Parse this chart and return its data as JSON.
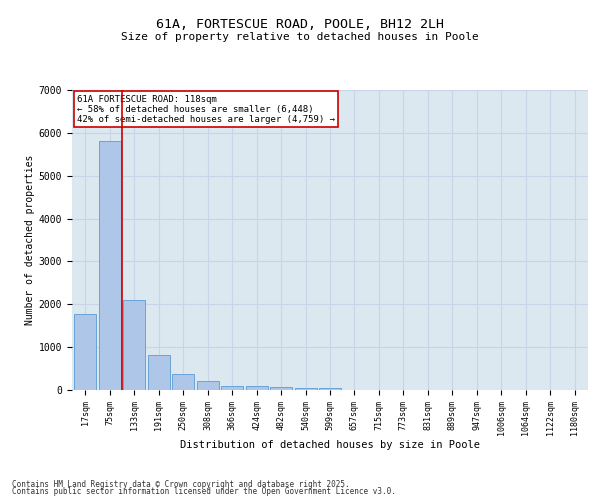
{
  "title_line1": "61A, FORTESCUE ROAD, POOLE, BH12 2LH",
  "title_line2": "Size of property relative to detached houses in Poole",
  "xlabel": "Distribution of detached houses by size in Poole",
  "ylabel": "Number of detached properties",
  "categories": [
    "17sqm",
    "75sqm",
    "133sqm",
    "191sqm",
    "250sqm",
    "308sqm",
    "366sqm",
    "424sqm",
    "482sqm",
    "540sqm",
    "599sqm",
    "657sqm",
    "715sqm",
    "773sqm",
    "831sqm",
    "889sqm",
    "947sqm",
    "1006sqm",
    "1064sqm",
    "1122sqm",
    "1180sqm"
  ],
  "bar_heights": [
    1780,
    5820,
    2090,
    810,
    370,
    200,
    90,
    85,
    70,
    55,
    50,
    0,
    0,
    0,
    0,
    0,
    0,
    0,
    0,
    0,
    0
  ],
  "bar_color": "#aec6e8",
  "bar_edge_color": "#5a9bd5",
  "ylim": [
    0,
    7000
  ],
  "yticks": [
    0,
    1000,
    2000,
    3000,
    4000,
    5000,
    6000,
    7000
  ],
  "property_line_x": 1.5,
  "property_line_color": "#cc0000",
  "annotation_title": "61A FORTESCUE ROAD: 118sqm",
  "annotation_line2": "← 58% of detached houses are smaller (6,448)",
  "annotation_line3": "42% of semi-detached houses are larger (4,759) →",
  "annotation_box_color": "#cc0000",
  "annotation_bg_color": "#ffffff",
  "grid_color": "#c8d4e8",
  "bg_color": "#dce8f0",
  "footnote1": "Contains HM Land Registry data © Crown copyright and database right 2025.",
  "footnote2": "Contains public sector information licensed under the Open Government Licence v3.0."
}
